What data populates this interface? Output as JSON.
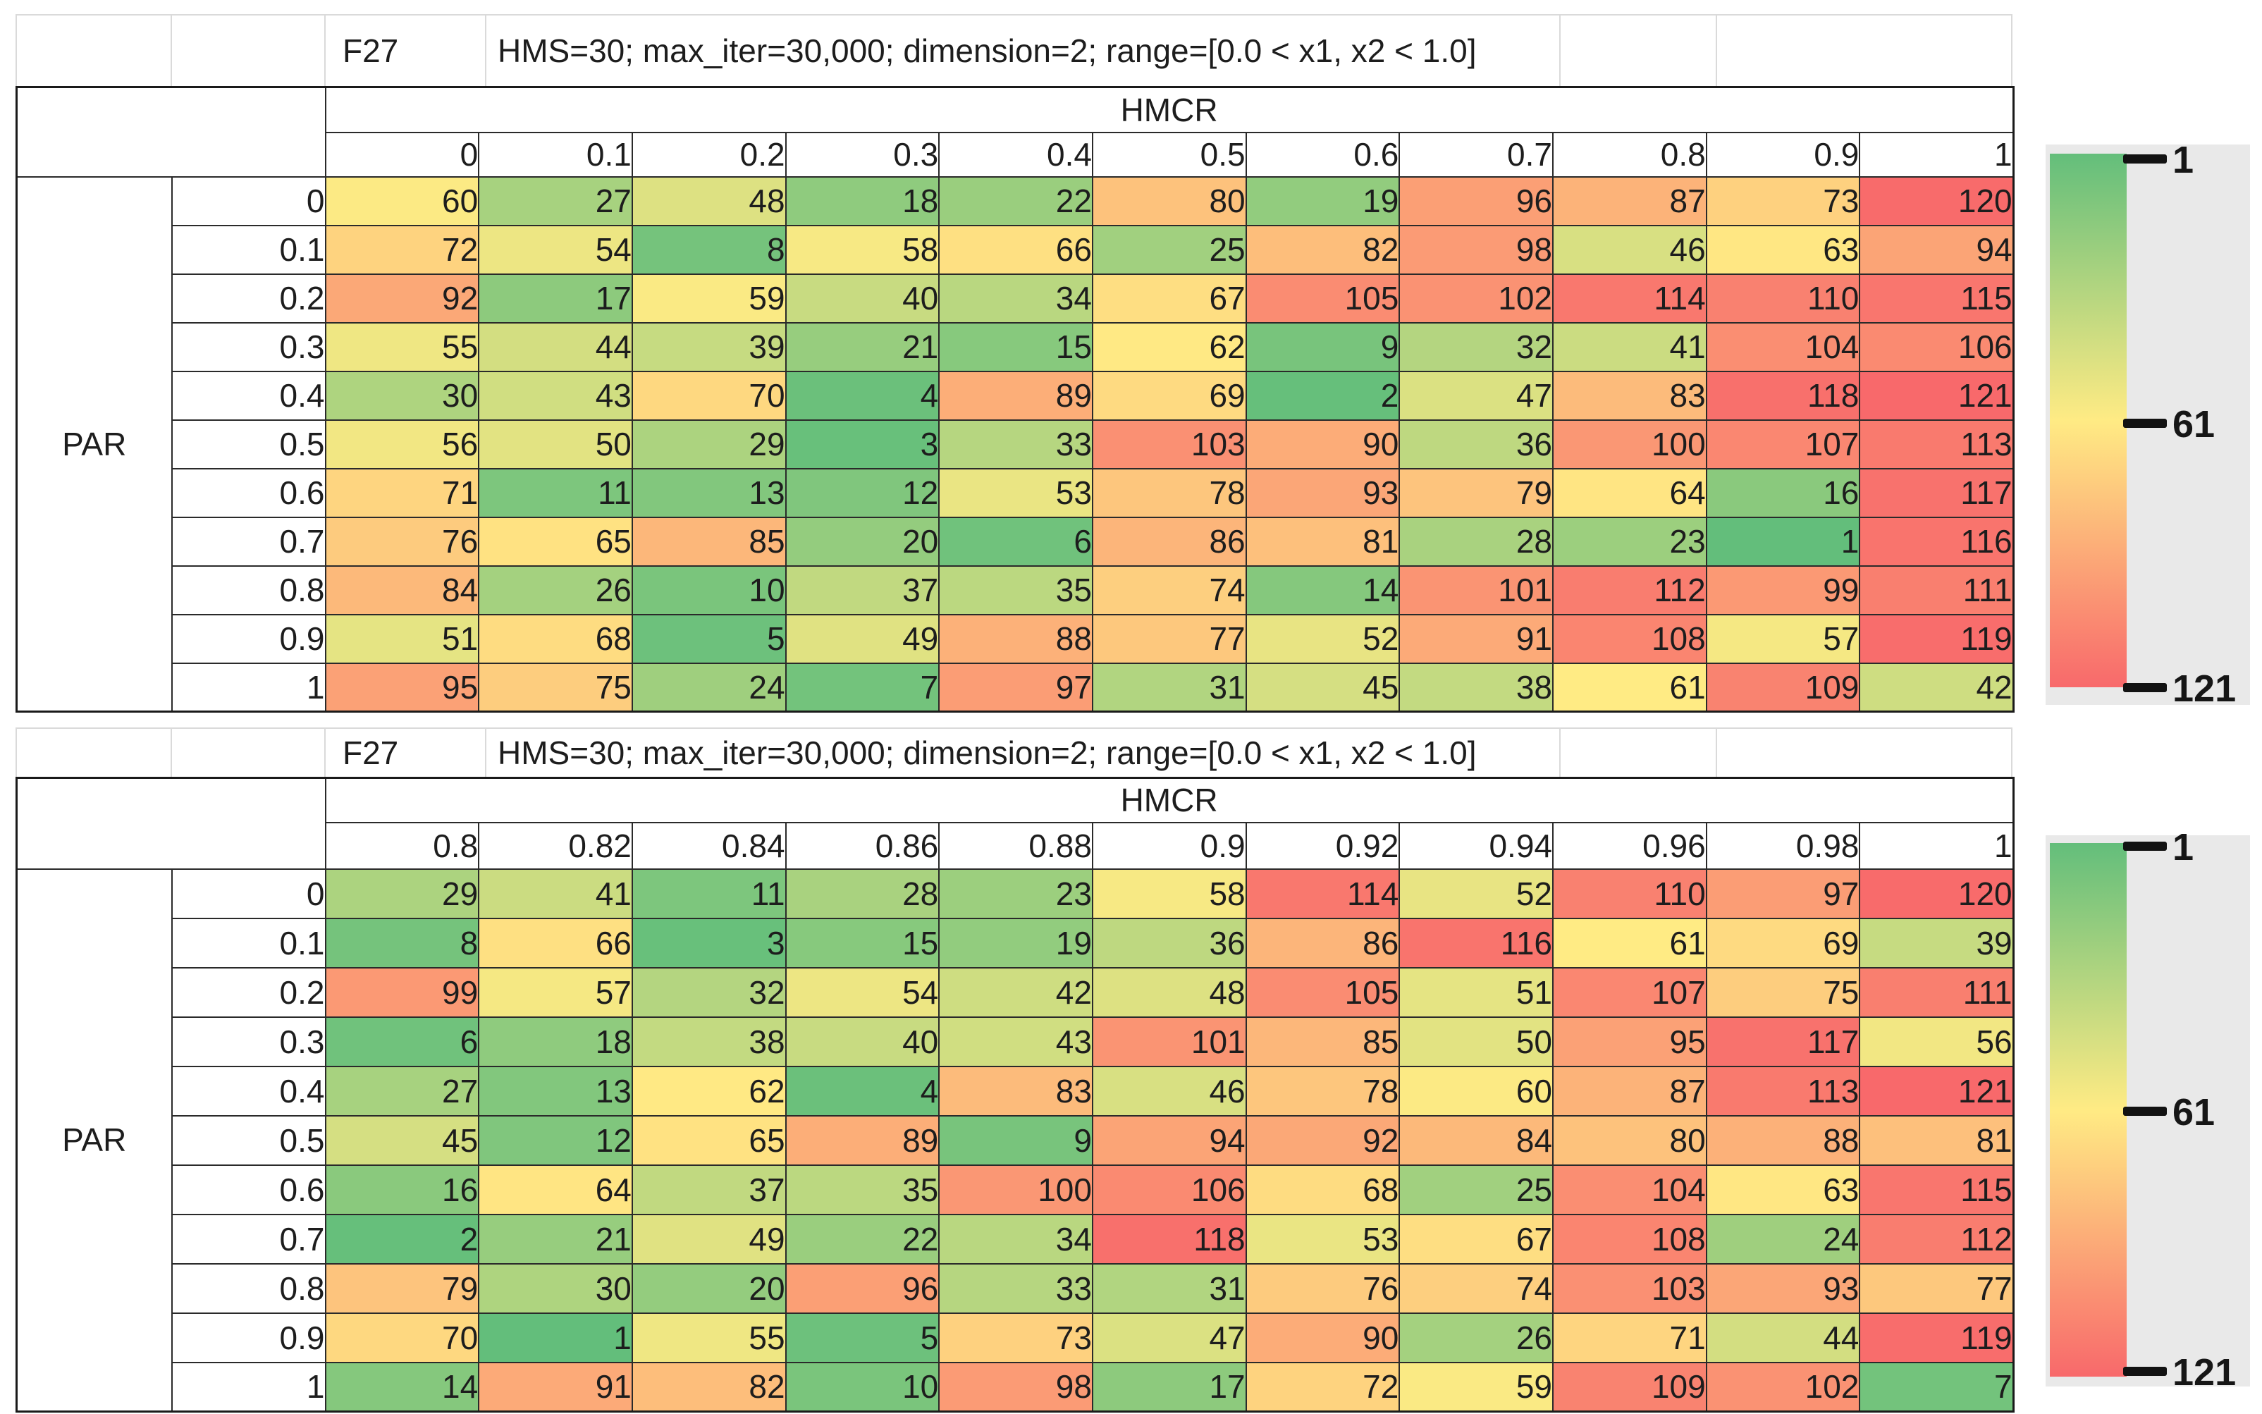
{
  "chart_data": [
    {
      "type": "heatmap",
      "cell_label": "F27",
      "title": "HMS=30; max_iter=30,000; dimension=2; range=[0.0 < x1, x2 < 1.0]",
      "x_axis_label": "HMCR",
      "y_axis_label": "PAR",
      "x_tick_labels": [
        "0",
        "0.1",
        "0.2",
        "0.3",
        "0.4",
        "0.5",
        "0.6",
        "0.7",
        "0.8",
        "0.9",
        "1"
      ],
      "y_tick_labels": [
        "0",
        "0.1",
        "0.2",
        "0.3",
        "0.4",
        "0.5",
        "0.6",
        "0.7",
        "0.8",
        "0.9",
        "1"
      ],
      "values": [
        [
          60,
          27,
          48,
          18,
          22,
          80,
          19,
          96,
          87,
          73,
          120
        ],
        [
          72,
          54,
          8,
          58,
          66,
          25,
          82,
          98,
          46,
          63,
          94
        ],
        [
          92,
          17,
          59,
          40,
          34,
          67,
          105,
          102,
          114,
          110,
          115
        ],
        [
          55,
          44,
          39,
          21,
          15,
          62,
          9,
          32,
          41,
          104,
          106
        ],
        [
          30,
          43,
          70,
          4,
          89,
          69,
          2,
          47,
          83,
          118,
          121
        ],
        [
          56,
          50,
          29,
          3,
          33,
          103,
          90,
          36,
          100,
          107,
          113
        ],
        [
          71,
          11,
          13,
          12,
          53,
          78,
          93,
          79,
          64,
          16,
          117
        ],
        [
          76,
          65,
          85,
          20,
          6,
          86,
          81,
          28,
          23,
          1,
          116
        ],
        [
          84,
          26,
          10,
          37,
          35,
          74,
          14,
          101,
          112,
          99,
          111
        ],
        [
          51,
          68,
          5,
          49,
          88,
          77,
          52,
          91,
          108,
          57,
          119
        ],
        [
          95,
          75,
          24,
          7,
          97,
          31,
          45,
          38,
          61,
          109,
          42
        ]
      ],
      "colorscale": {
        "min": {
          "value": 1,
          "color": "#63BE7B"
        },
        "mid": {
          "value": 61,
          "color": "#FFEB84"
        },
        "max": {
          "value": 121,
          "color": "#F8696B"
        }
      },
      "legend_tick_labels": [
        "1",
        "61",
        "121"
      ],
      "legend_position": "right"
    },
    {
      "type": "heatmap",
      "cell_label": "F27",
      "title": "HMS=30; max_iter=30,000; dimension=2; range=[0.0 < x1, x2 < 1.0]",
      "x_axis_label": "HMCR",
      "y_axis_label": "PAR",
      "x_tick_labels": [
        "0.8",
        "0.82",
        "0.84",
        "0.86",
        "0.88",
        "0.9",
        "0.92",
        "0.94",
        "0.96",
        "0.98",
        "1"
      ],
      "y_tick_labels": [
        "0",
        "0.1",
        "0.2",
        "0.3",
        "0.4",
        "0.5",
        "0.6",
        "0.7",
        "0.8",
        "0.9",
        "1"
      ],
      "values": [
        [
          29,
          41,
          11,
          28,
          23,
          58,
          114,
          52,
          110,
          97,
          120
        ],
        [
          8,
          66,
          3,
          15,
          19,
          36,
          86,
          116,
          61,
          69,
          39
        ],
        [
          99,
          57,
          32,
          54,
          42,
          48,
          105,
          51,
          107,
          75,
          111
        ],
        [
          6,
          18,
          38,
          40,
          43,
          101,
          85,
          50,
          95,
          117,
          56
        ],
        [
          27,
          13,
          62,
          4,
          83,
          46,
          78,
          60,
          87,
          113,
          121
        ],
        [
          45,
          12,
          65,
          89,
          9,
          94,
          92,
          84,
          80,
          88,
          81
        ],
        [
          16,
          64,
          37,
          35,
          100,
          106,
          68,
          25,
          104,
          63,
          115
        ],
        [
          2,
          21,
          49,
          22,
          34,
          118,
          53,
          67,
          108,
          24,
          112
        ],
        [
          79,
          30,
          20,
          96,
          33,
          31,
          76,
          74,
          103,
          93,
          77
        ],
        [
          70,
          1,
          55,
          5,
          73,
          47,
          90,
          26,
          71,
          44,
          119
        ],
        [
          14,
          91,
          82,
          10,
          98,
          17,
          72,
          59,
          109,
          102,
          7
        ]
      ],
      "colorscale": {
        "min": {
          "value": 1,
          "color": "#63BE7B"
        },
        "mid": {
          "value": 61,
          "color": "#FFEB84"
        },
        "max": {
          "value": 121,
          "color": "#F8696B"
        }
      },
      "legend_tick_labels": [
        "1",
        "61",
        "121"
      ],
      "legend_position": "right"
    }
  ]
}
